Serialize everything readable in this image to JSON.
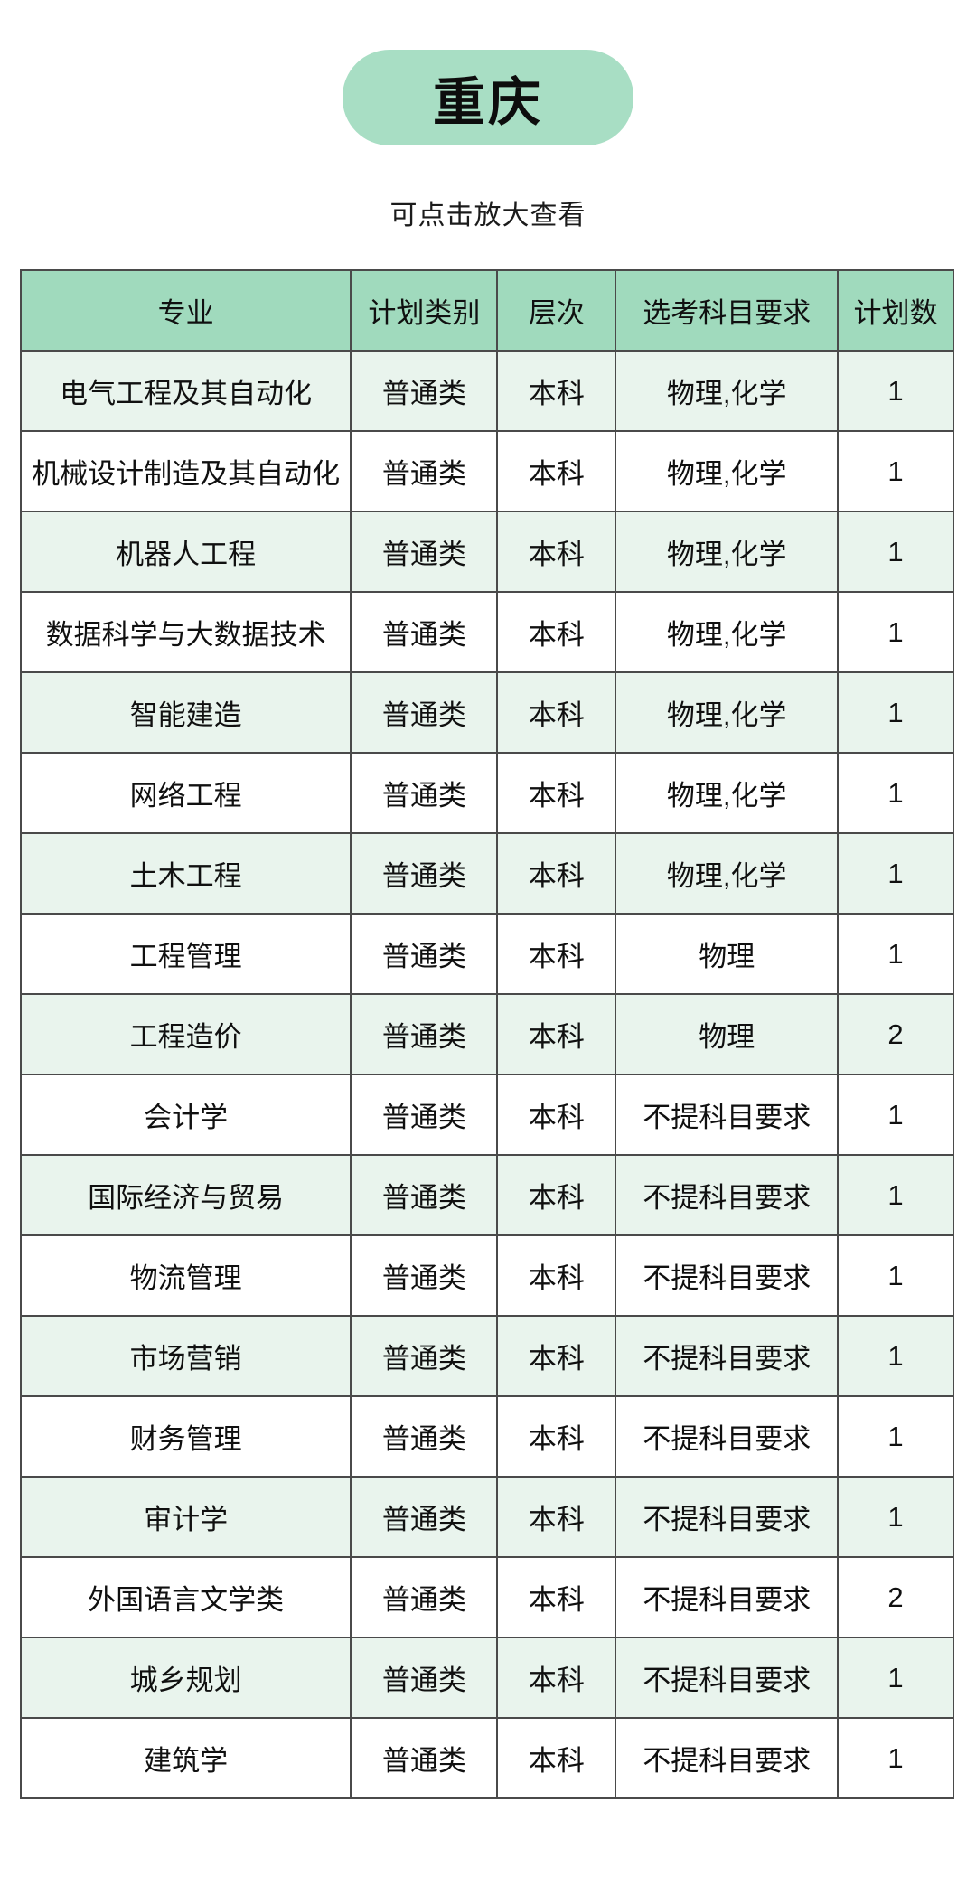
{
  "page": {
    "badge": "重庆",
    "subtitle": "可点击放大查看"
  },
  "table": {
    "headers": [
      "专业",
      "计划类别",
      "层次",
      "选考科目要求",
      "计划数"
    ],
    "rows": [
      [
        "电气工程及其自动化",
        "普通类",
        "本科",
        "物理,化学",
        "1"
      ],
      [
        "机械设计制造及其自动化",
        "普通类",
        "本科",
        "物理,化学",
        "1"
      ],
      [
        "机器人工程",
        "普通类",
        "本科",
        "物理,化学",
        "1"
      ],
      [
        "数据科学与大数据技术",
        "普通类",
        "本科",
        "物理,化学",
        "1"
      ],
      [
        "智能建造",
        "普通类",
        "本科",
        "物理,化学",
        "1"
      ],
      [
        "网络工程",
        "普通类",
        "本科",
        "物理,化学",
        "1"
      ],
      [
        "土木工程",
        "普通类",
        "本科",
        "物理,化学",
        "1"
      ],
      [
        "工程管理",
        "普通类",
        "本科",
        "物理",
        "1"
      ],
      [
        "工程造价",
        "普通类",
        "本科",
        "物理",
        "2"
      ],
      [
        "会计学",
        "普通类",
        "本科",
        "不提科目要求",
        "1"
      ],
      [
        "国际经济与贸易",
        "普通类",
        "本科",
        "不提科目要求",
        "1"
      ],
      [
        "物流管理",
        "普通类",
        "本科",
        "不提科目要求",
        "1"
      ],
      [
        "市场营销",
        "普通类",
        "本科",
        "不提科目要求",
        "1"
      ],
      [
        "财务管理",
        "普通类",
        "本科",
        "不提科目要求",
        "1"
      ],
      [
        "审计学",
        "普通类",
        "本科",
        "不提科目要求",
        "1"
      ],
      [
        "外国语言文学类",
        "普通类",
        "本科",
        "不提科目要求",
        "2"
      ],
      [
        "城乡规划",
        "普通类",
        "本科",
        "不提科目要求",
        "1"
      ],
      [
        "建筑学",
        "普通类",
        "本科",
        "不提科目要求",
        "1"
      ]
    ]
  },
  "colors": {
    "badge_bg": "#a8dec4",
    "header_bg": "#a0dabd",
    "row_alt_bg": "#e9f4ed",
    "border": "#4a4a4a",
    "text": "#111111"
  }
}
